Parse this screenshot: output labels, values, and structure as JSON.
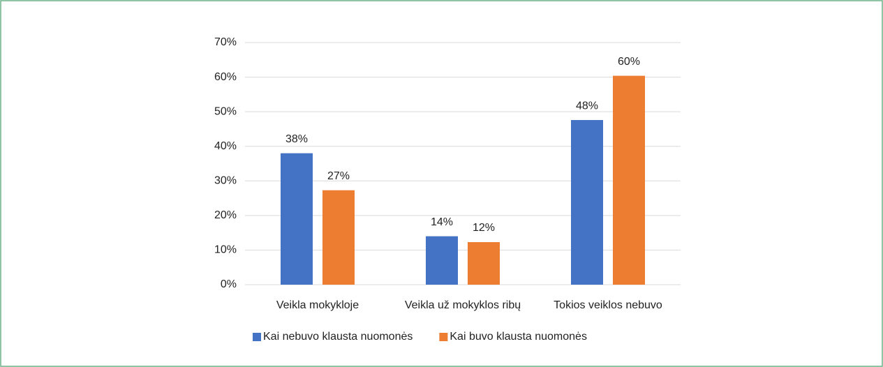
{
  "chart_data": {
    "type": "bar",
    "categories": [
      "Veikla mokykloje",
      "Veikla už mokyklos ribų",
      "Tokios veiklos nebuvo"
    ],
    "series": [
      {
        "name": "Kai nebuvo klausta nuomonės",
        "color": "#4472c4",
        "values": [
          38,
          14,
          47.6
        ],
        "value_labels": [
          "38%",
          "14%",
          "48%"
        ]
      },
      {
        "name": "Kai buvo klausta nuomonės",
        "color": "#ed7d31",
        "values": [
          27.3,
          12.3,
          60.4
        ],
        "value_labels": [
          "27%",
          "12%",
          "60%"
        ]
      }
    ],
    "ylim": [
      0,
      70
    ],
    "yticks": [
      {
        "value": 0,
        "label": "0%"
      },
      {
        "value": 10,
        "label": "10%"
      },
      {
        "value": 20,
        "label": "20%"
      },
      {
        "value": 30,
        "label": "30%"
      },
      {
        "value": 40,
        "label": "40%"
      },
      {
        "value": 50,
        "label": "50%"
      },
      {
        "value": 60,
        "label": "60%"
      },
      {
        "value": 70,
        "label": "70%"
      }
    ],
    "grid": true,
    "legend": "bottom"
  }
}
